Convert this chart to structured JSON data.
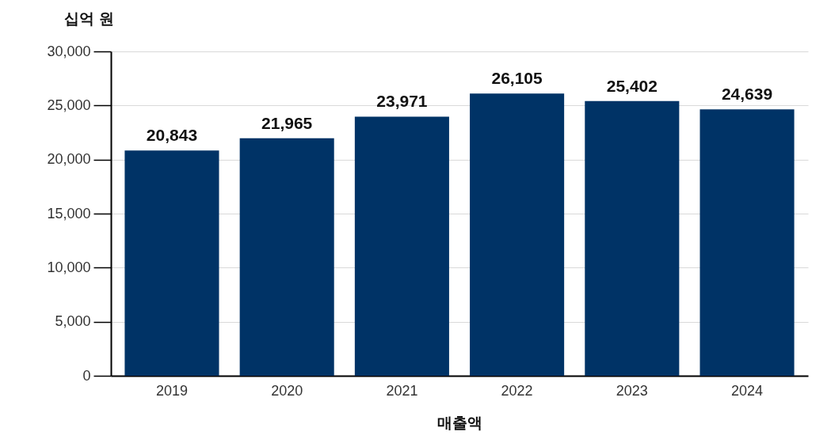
{
  "chart_data": {
    "type": "bar",
    "ylabel": "십억 원",
    "xlabel": "매출액",
    "categories": [
      "2019",
      "2020",
      "2021",
      "2022",
      "2023",
      "2024"
    ],
    "values": [
      20843,
      21965,
      23971,
      26105,
      25402,
      24639
    ],
    "value_labels": [
      "20,843",
      "21,965",
      "23,971",
      "26,105",
      "25,402",
      "24,639"
    ],
    "color": "#003366",
    "ylim": [
      0,
      30000
    ],
    "yticks": [
      0,
      {
        "value": 5000,
        "label": "5,000"
      },
      {
        "value": 10000,
        "label": "10,000"
      },
      {
        "value": 15000,
        "label": "15,000"
      },
      {
        "value": 20000,
        "label": "20,000"
      },
      {
        "value": 25000,
        "label": "25,000"
      },
      {
        "value": 30000,
        "label": "30,000"
      }
    ],
    "grid": "y"
  }
}
